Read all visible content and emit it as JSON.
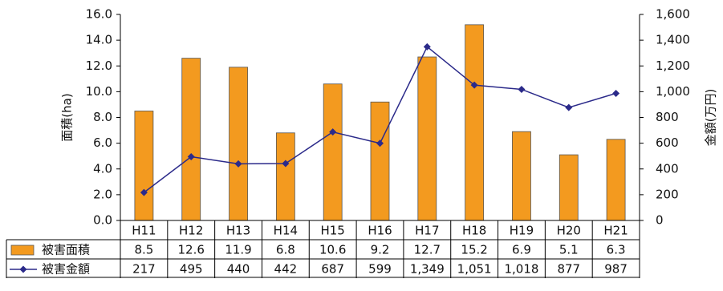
{
  "chart_data": {
    "type": "bar+line",
    "categories": [
      "H11",
      "H12",
      "H13",
      "H14",
      "H15",
      "H16",
      "H17",
      "H18",
      "H19",
      "H20",
      "H21"
    ],
    "series": [
      {
        "name": "被害面積",
        "type": "bar",
        "axis": "left",
        "color": "#f39a1f",
        "values": [
          8.5,
          12.6,
          11.9,
          6.8,
          10.6,
          9.2,
          12.7,
          15.2,
          6.9,
          5.1,
          6.3
        ],
        "labels": [
          "8.5",
          "12.6",
          "11.9",
          "6.8",
          "10.6",
          "9.2",
          "12.7",
          "15.2",
          "6.9",
          "5.1",
          "6.3"
        ]
      },
      {
        "name": "被害金額",
        "type": "line",
        "axis": "right",
        "color": "#2b2a8a",
        "marker": "diamond",
        "values": [
          217,
          495,
          440,
          442,
          687,
          599,
          1349,
          1051,
          1018,
          877,
          987
        ],
        "labels": [
          "217",
          "495",
          "440",
          "442",
          "687",
          "599",
          "1,349",
          "1,051",
          "1,018",
          "877",
          "987"
        ]
      }
    ],
    "ylabel_left": "面積(ha)",
    "ylabel_right": "金額(万円)",
    "ylim_left": [
      0,
      16
    ],
    "ylim_right": [
      0,
      1600
    ],
    "yticks_left": [
      "0.0",
      "2.0",
      "4.0",
      "6.0",
      "8.0",
      "10.0",
      "12.0",
      "14.0",
      "16.0"
    ],
    "yticks_right": [
      "0",
      "200",
      "400",
      "600",
      "800",
      "1,000",
      "1,200",
      "1,400",
      "1,600"
    ],
    "grid": false,
    "data_table": true
  }
}
